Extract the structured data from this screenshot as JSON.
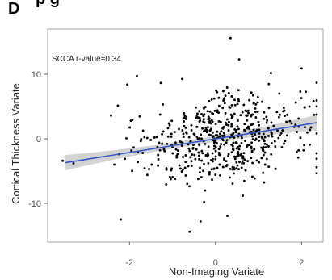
{
  "panel": {
    "letter": "D",
    "heading_fragment": "p       g"
  },
  "chart_data": {
    "type": "scatter",
    "title": "",
    "xlabel": "Non-Imaging Variate",
    "ylabel": "Cortical Thickness Variate",
    "xlim": [
      -3.9,
      2.5
    ],
    "ylim": [
      -16.0,
      17.0
    ],
    "x_ticks": [
      -2,
      0,
      2
    ],
    "x_tick_labels": [
      "-2",
      "0",
      "2"
    ],
    "y_ticks": [
      -10,
      0,
      10
    ],
    "y_tick_labels": [
      "-10",
      "0",
      "10"
    ],
    "grid": false,
    "annotation": "SCCA r-value=0.34",
    "point_count": 560,
    "point_color": "#000000",
    "fit": {
      "type": "linear",
      "slope": 1.06,
      "intercept": 0.0,
      "x_range": [
        -3.5,
        2.35
      ],
      "color": "#3355cc",
      "ci_color": "#c4c4c4",
      "ci_halfwidth_at_ends": 1.2,
      "ci_halfwidth_at_center": 0.45
    },
    "notable_points": [
      {
        "x": 0.35,
        "y": 15.6
      },
      {
        "x": 0.55,
        "y": 12.3
      },
      {
        "x": -2.05,
        "y": 8.4
      },
      {
        "x": -0.6,
        "y": -14.4
      },
      {
        "x": -2.2,
        "y": -12.5
      },
      {
        "x": 2.0,
        "y": 10.9
      },
      {
        "x": -3.3,
        "y": -3.8
      },
      {
        "x": -3.55,
        "y": -3.4
      }
    ]
  }
}
